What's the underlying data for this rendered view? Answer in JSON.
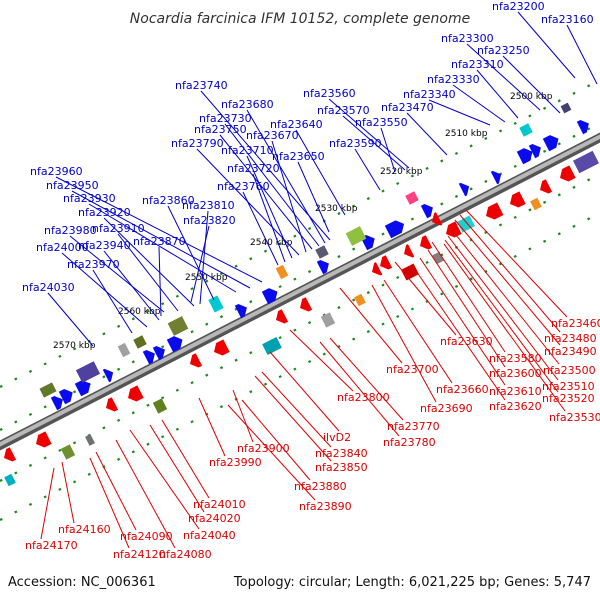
{
  "title": "Nocardia farcinica IFM 10152, complete genome",
  "footer": {
    "accession": "Accession: NC_006361",
    "topology": "Topology: circular; Length: 6,021,225 bp; Genes: 5,747"
  },
  "colors": {
    "forward_label": "#0000cc",
    "reverse_label": "#dd0000",
    "forward_arrow": "#0a0aee",
    "reverse_arrow": "#ee0000",
    "backbone": "#999999",
    "tick_dot": "#1a8a1a"
  },
  "ticks": [
    "2500 kbp",
    "2510 kbp",
    "2520 kbp",
    "2530 kbp",
    "2540 kbp",
    "2550 kbp",
    "2560 kbp",
    "2570 kbp"
  ],
  "top_labels": [
    "nfa23200",
    "nfa23160",
    "nfa23300",
    "nfa23250",
    "nfa23310",
    "nfa23330",
    "nfa23340",
    "nfa23470",
    "nfa23560",
    "nfa23570",
    "nfa23550",
    "nfa23590",
    "nfa23740",
    "nfa23680",
    "nfa23730",
    "nfa23750",
    "nfa23640",
    "nfa23670",
    "nfa23790",
    "nfa23710",
    "nfa23650",
    "nfa23720",
    "nfa23760",
    "nfa23960",
    "nfa23950",
    "nfa23930",
    "nfa23860",
    "nfa23920",
    "nfa23810",
    "nfa23910",
    "nfa23820",
    "nfa23980",
    "nfa23940",
    "nfa23870",
    "nfa24000",
    "nfa23970",
    "nfa24030"
  ],
  "bottom_labels": [
    "nfa23460",
    "nfa23480",
    "nfa23490",
    "nfa23630",
    "nfa23580",
    "nfa23500",
    "nfa23510",
    "nfa23520",
    "nfa23600",
    "nfa23610",
    "nfa23620",
    "nfa23530",
    "nfa23700",
    "nfa23660",
    "nfa23690",
    "nfa23800",
    "nfa23770",
    "nfa23780",
    "ilvD2",
    "nfa23900",
    "nfa23840",
    "nfa23850",
    "nfa23990",
    "nfa23880",
    "nfa23890",
    "nfa24010",
    "nfa24020",
    "nfa24160",
    "nfa24040",
    "nfa24090",
    "nfa24170",
    "nfa24120",
    "nfa24080"
  ]
}
